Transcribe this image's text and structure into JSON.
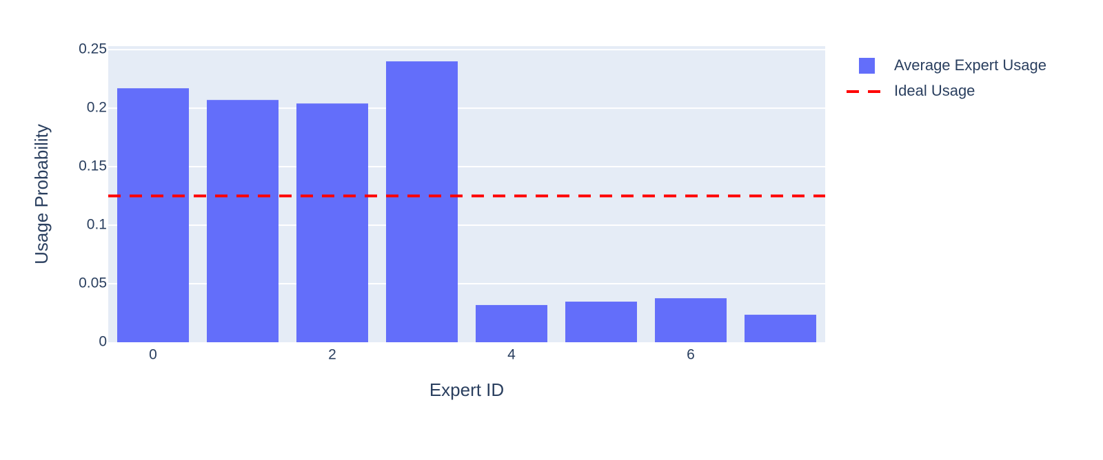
{
  "chart_data": {
    "type": "bar",
    "x_label": "Expert ID",
    "y_label": "Usage Probability",
    "x": [
      0,
      1,
      2,
      3,
      4,
      5,
      6,
      7
    ],
    "series": [
      {
        "name": "Average Expert Usage",
        "type": "bar",
        "color": "#636efa",
        "values": [
          0.217,
          0.207,
          0.204,
          0.24,
          0.0318,
          0.0347,
          0.0376,
          0.0235
        ]
      },
      {
        "name": "Ideal Usage",
        "type": "line",
        "color": "#ff0000",
        "dash": true,
        "x": [
          -0.5,
          7.5
        ],
        "values": [
          0.125,
          0.125
        ]
      }
    ],
    "xlim": [
      -0.5,
      7.5
    ],
    "xticks": [
      0,
      2,
      4,
      6
    ],
    "ylim": [
      0,
      0.253
    ],
    "yticks": [
      0,
      0.05,
      0.1,
      0.15,
      0.2,
      0.25
    ],
    "grid": true,
    "legend": "outside-right"
  }
}
